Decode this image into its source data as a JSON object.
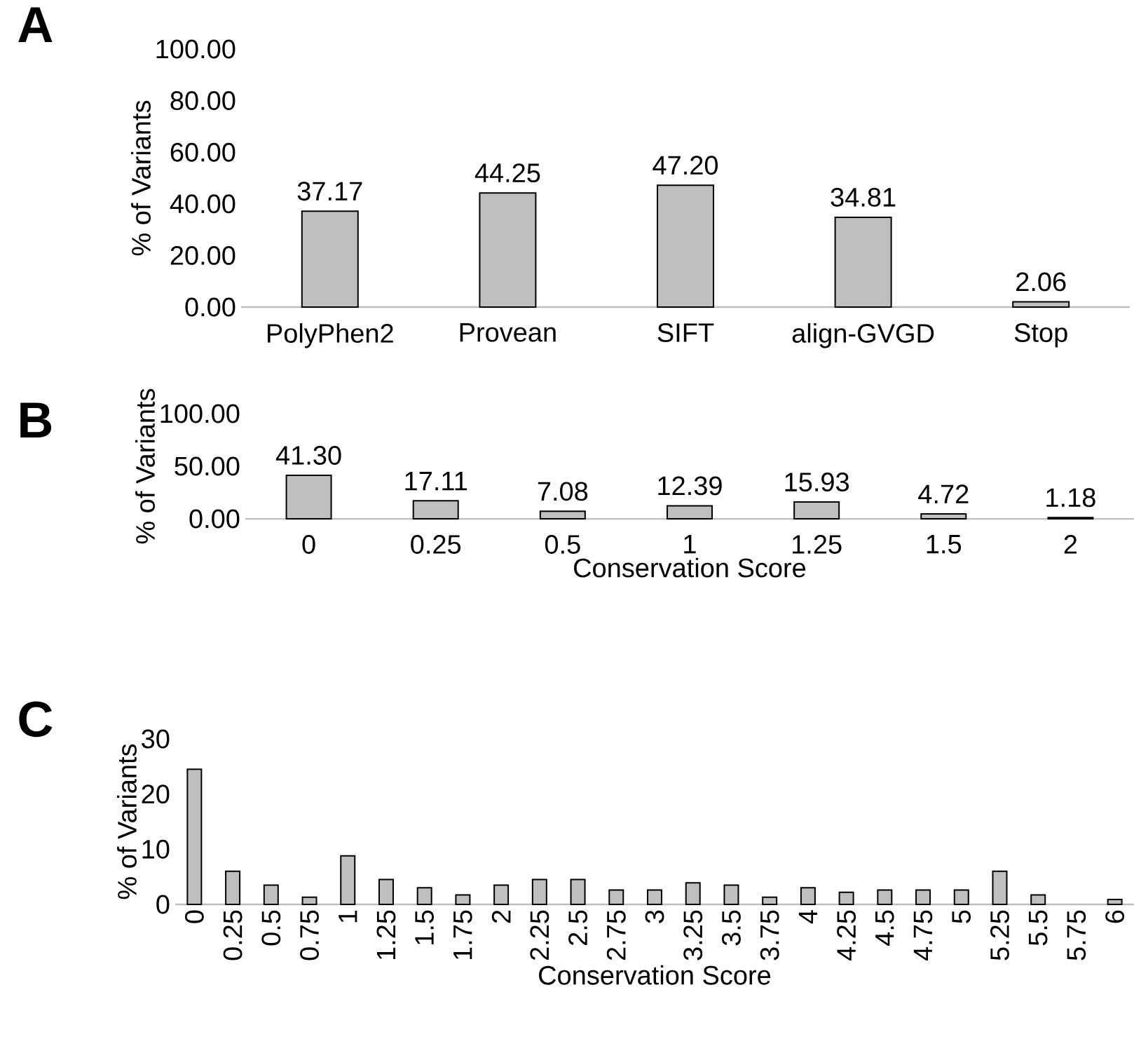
{
  "chart_data": [
    {
      "type": "bar",
      "title": "A",
      "ylabel": "% of Variants",
      "categories": [
        "PolyPhen2",
        "Provean",
        "SIFT",
        "align-GVGD",
        "Stop"
      ],
      "values": [
        37.17,
        44.25,
        47.2,
        34.81,
        2.06
      ],
      "value_labels": [
        "37.17",
        "44.25",
        "47.20",
        "34.81",
        "2.06"
      ],
      "color": "#bfbfbf",
      "ylim": [
        0,
        100
      ],
      "yticks": [
        {
          "value": 0,
          "label": "0.00"
        },
        {
          "value": 20,
          "label": "20.00"
        },
        {
          "value": 40,
          "label": "40.00"
        },
        {
          "value": 60,
          "label": "60.00"
        },
        {
          "value": 80,
          "label": "80.00"
        },
        {
          "value": 100,
          "label": "100.00"
        }
      ],
      "grid": false
    },
    {
      "type": "bar",
      "title": "B",
      "ylabel": "% of Variants",
      "xlabel": "Conservation Score",
      "categories": [
        "0",
        "0.25",
        "0.5",
        "1",
        "1.25",
        "1.5",
        "2"
      ],
      "values": [
        41.3,
        17.11,
        7.08,
        12.39,
        15.93,
        4.72,
        1.18
      ],
      "value_labels": [
        "41.30",
        "17.11",
        "7.08",
        "12.39",
        "15.93",
        "4.72",
        "1.18"
      ],
      "color": "#bfbfbf",
      "ylim": [
        0,
        100
      ],
      "yticks": [
        {
          "value": 0,
          "label": "0.00"
        },
        {
          "value": 50,
          "label": "50.00"
        },
        {
          "value": 100,
          "label": "100.00"
        }
      ],
      "grid": false
    },
    {
      "type": "bar",
      "title": "C",
      "ylabel": "% of Variants",
      "xlabel": "Conservation Score",
      "categories": [
        "0",
        "0.25",
        "0.5",
        "0.75",
        "1",
        "1.25",
        "1.5",
        "1.75",
        "2",
        "2.25",
        "2.5",
        "2.75",
        "3",
        "3.25",
        "3.5",
        "3.75",
        "4",
        "4.25",
        "4.5",
        "4.75",
        "5",
        "5.25",
        "5.5",
        "5.75",
        "6"
      ],
      "values": [
        24.5,
        6,
        3.5,
        1.3,
        8.8,
        4.5,
        3,
        1.7,
        3.5,
        4.5,
        4.5,
        2.6,
        2.6,
        3.9,
        3.5,
        1.3,
        3,
        2.2,
        2.6,
        2.6,
        2.6,
        6,
        1.7,
        null,
        0.9
      ],
      "color": "#bfbfbf",
      "ylim": [
        0,
        30
      ],
      "yticks": [
        0,
        10,
        20,
        30
      ],
      "grid": false
    }
  ]
}
